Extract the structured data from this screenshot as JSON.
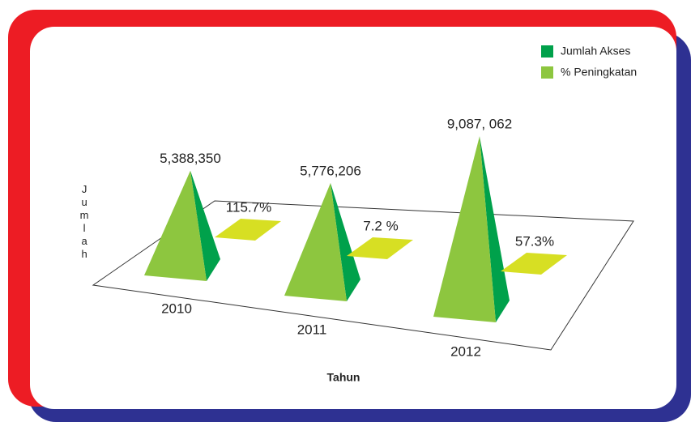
{
  "chart_data": {
    "type": "pyramid",
    "x_label": "Tahun",
    "y_label": "Jumlah",
    "categories": [
      "2010",
      "2011",
      "2012"
    ],
    "ylim": [
      0,
      10000000
    ],
    "legend": "top-right",
    "series": [
      {
        "name": "Jumlah Akses",
        "color": "#00a14b",
        "values": [
          5388350,
          5776206,
          9087062
        ],
        "value_labels": [
          "5,388,350",
          "5,776,206",
          "9,087, 062"
        ]
      },
      {
        "name": "% Peningkatan",
        "color": "#8dc63f",
        "values": [
          115.7,
          7.2,
          57.3
        ],
        "value_labels": [
          "115.7%",
          "7.2 %",
          "57.3%"
        ]
      }
    ]
  }
}
